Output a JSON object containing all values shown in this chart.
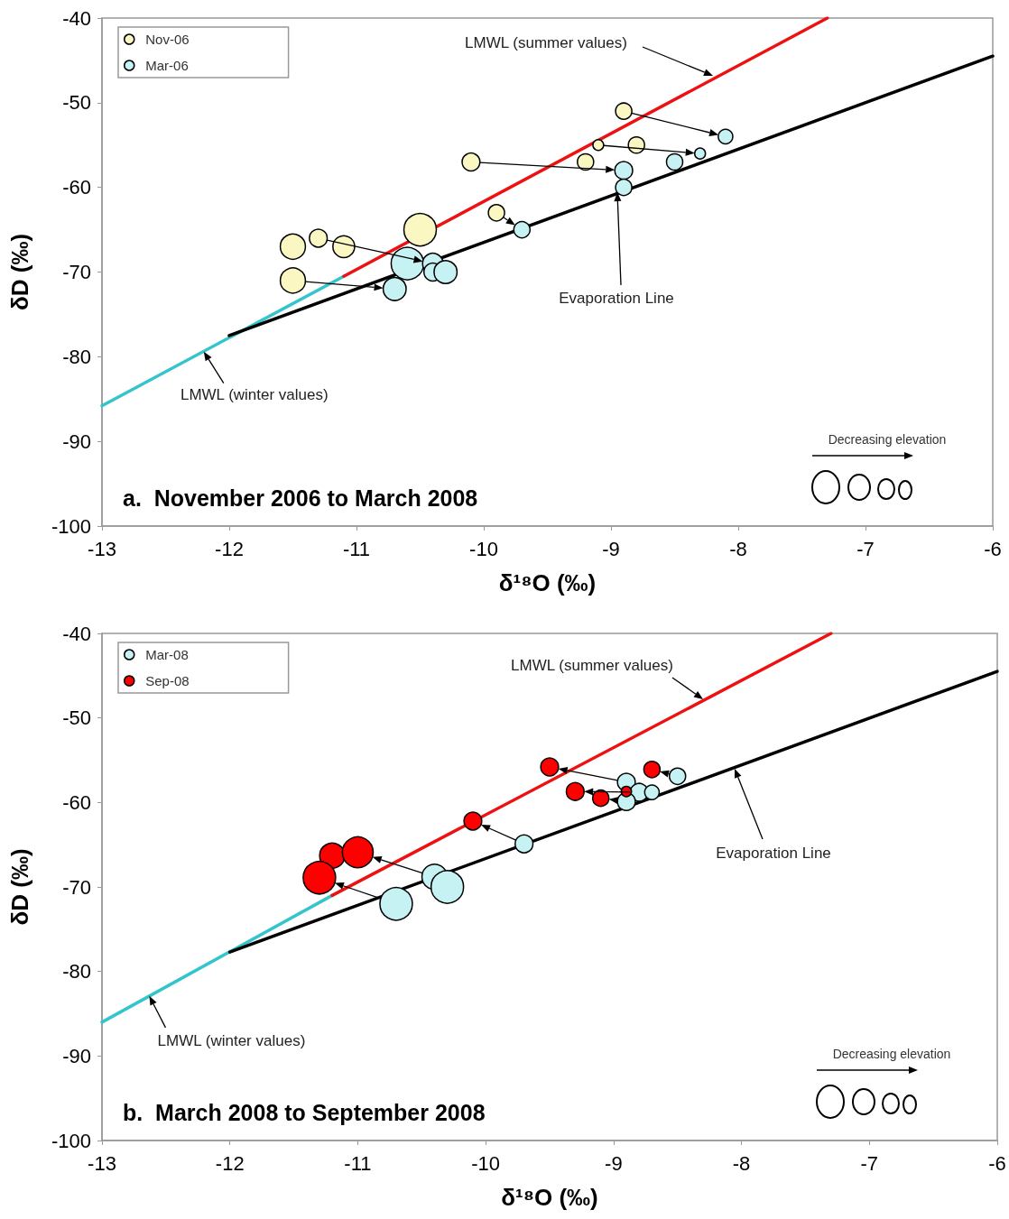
{
  "chart_data": [
    {
      "type": "bubble",
      "title": "a.  November 2006 to March 2008",
      "xlabel": "δ¹⁸O (‰)",
      "ylabel": "δD (‰)",
      "legend": "top left",
      "xlim": [
        -13,
        -6
      ],
      "xticks": [
        -13,
        -12,
        -11,
        -10,
        -9,
        -8,
        -7,
        -6
      ],
      "ylim": [
        -100,
        -40
      ],
      "yticks": [
        -100,
        -90,
        -80,
        -70,
        -60,
        -50,
        -40
      ],
      "series": [
        {
          "name": "Nov-06",
          "color": "#fbf7c2",
          "x": [
            -8.9,
            -9.1,
            -8.8,
            -10.1,
            -9.2,
            -9.9,
            -10.5,
            -11.5,
            -11.3,
            -11.1,
            -11.5
          ],
          "values": [
            -51,
            -55,
            -55,
            -57,
            -57,
            -63,
            -65,
            -67,
            -66,
            -67,
            -71
          ],
          "sizes": [
            0.25,
            0.11,
            0.25,
            0.3,
            0.25,
            0.25,
            1,
            0.6,
            0.3,
            0.45,
            0.6
          ]
        },
        {
          "name": "Mar-06",
          "color": "#c6f2f4",
          "x": [
            -8.1,
            -8.3,
            -8.5,
            -8.9,
            -8.9,
            -9.7,
            -10.6,
            -10.4,
            -10.4,
            -10.3,
            -10.7
          ],
          "values": [
            -54,
            -56,
            -57,
            -58,
            -60,
            -65,
            -69,
            -69,
            -70,
            -70,
            -72
          ],
          "sizes": [
            0.2,
            0.11,
            0.25,
            0.3,
            0.25,
            0.25,
            1,
            0.4,
            0.3,
            0.5,
            0.5
          ]
        },
        {
          "type": "line",
          "color": "#33c4cc",
          "x": [
            -13,
            -11.1
          ],
          "values": [
            -85.8,
            -70.5
          ]
        },
        {
          "type": "line",
          "color": "#ee1111",
          "x": [
            -11.1,
            -7.3
          ],
          "values": [
            -70.5,
            -40
          ]
        },
        {
          "type": "line",
          "color": "#000000",
          "x": [
            -12,
            -6
          ],
          "values": [
            -77.5,
            -44.5
          ]
        }
      ],
      "annotations": [
        "LMWL (summer values)",
        "Evaporation Line",
        {
          "text": "LMWL (winter values)",
          "x": -12.2,
          "y": -79.4
        },
        "Decreasing elevation"
      ]
    },
    {
      "type": "bubble",
      "title": "b.  March 2008 to September 2008",
      "xlabel": "δ¹⁸O (‰)",
      "ylabel": "δD (‰)",
      "legend": "top left",
      "xlim": [
        -13,
        -6
      ],
      "xticks": [
        -13,
        -12,
        -11,
        -10,
        -9,
        -8,
        -7,
        -6
      ],
      "ylim": [
        -100,
        -40
      ],
      "yticks": [
        -100,
        -90,
        -80,
        -70,
        -60,
        -50,
        -40
      ],
      "series": [
        {
          "name": "Mar-08",
          "color": "#c6f2f4",
          "x": [
            -8.5,
            -8.9,
            -8.8,
            -8.7,
            -8.9,
            -9.7,
            -10.4,
            -10.3,
            -10.7
          ],
          "values": [
            -56.9,
            -57.6,
            -58.8,
            -58.8,
            -59.9,
            -64.9,
            -68.8,
            -70,
            -72
          ],
          "sizes": [
            0.25,
            0.3,
            0.3,
            0.2,
            0.3,
            0.3,
            0.6,
            1,
            1
          ]
        },
        {
          "name": "Sep-08",
          "color": "#ff0000",
          "x": [
            -9.5,
            -9.3,
            -9.1,
            -8.9,
            -8.7,
            -10.1,
            -11.2,
            -11,
            -11.3
          ],
          "values": [
            -55.8,
            -58.7,
            -59.5,
            -58.7,
            -56.1,
            -62.2,
            -66.3,
            -65.9,
            -68.9
          ],
          "sizes": [
            0.3,
            0.3,
            0.25,
            0.1,
            0.25,
            0.3,
            0.6,
            0.9,
            1
          ]
        },
        {
          "type": "line",
          "color": "#33c4cc",
          "x": [
            -13,
            -11.2
          ],
          "values": [
            -86,
            -71
          ]
        },
        {
          "type": "line",
          "color": "#ee1111",
          "x": [
            -11.2,
            -7.3
          ],
          "values": [
            -71,
            -40
          ]
        },
        {
          "type": "line",
          "color": "#000000",
          "x": [
            -12,
            -6
          ],
          "values": [
            -77.7,
            -44.5
          ]
        }
      ],
      "annotations": [
        "LMWL (summer values)",
        "Evaporation Line",
        {
          "text": "LMWL (winter values)",
          "x": -12.63,
          "y": -82.9
        },
        "Decreasing elevation"
      ]
    }
  ]
}
